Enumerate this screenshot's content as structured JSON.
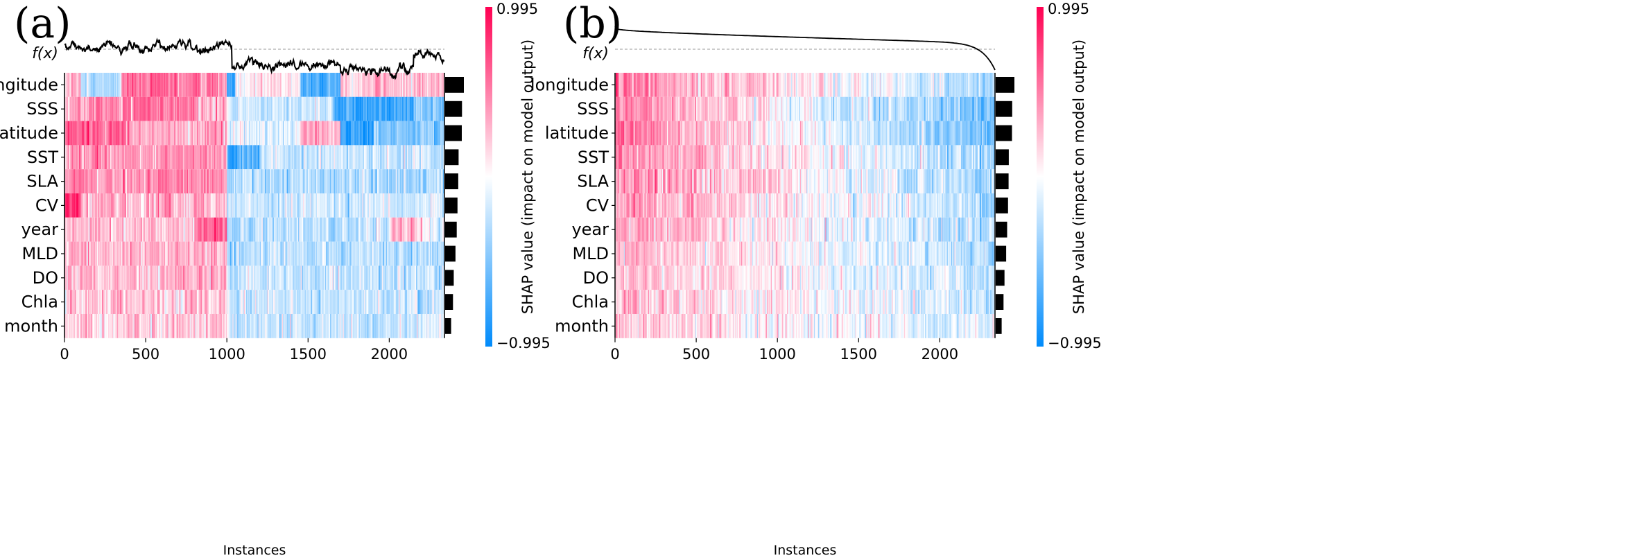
{
  "chart_data": [
    {
      "type": "heatmap",
      "panel_label": "(a)",
      "ordering": "original instance order",
      "fx_label": "f(x)",
      "xlabel": "Instances",
      "xticks": [
        0,
        500,
        1000,
        1500,
        2000
      ],
      "xtick_labels": [
        "0",
        "500",
        "1000",
        "1500",
        "2000"
      ],
      "n_instances": 2340,
      "features": [
        "longitude",
        "SSS",
        "latitude",
        "SST",
        "SLA",
        "CV",
        "year",
        "MLD",
        "DO",
        "Chla",
        "month"
      ],
      "mean_abs_shap_relative": [
        1.0,
        0.9,
        0.89,
        0.72,
        0.7,
        0.66,
        0.62,
        0.55,
        0.46,
        0.42,
        0.32
      ],
      "fx_segments": [
        [
          0,
          1030,
          0.75
        ],
        [
          1030,
          1700,
          0.15
        ],
        [
          1700,
          2150,
          0.0
        ],
        [
          2150,
          2340,
          0.45
        ]
      ],
      "shap_segments": [
        [
          [
            0,
            100,
            0.25
          ],
          [
            100,
            350,
            -0.3
          ],
          [
            350,
            1000,
            0.55
          ],
          [
            1000,
            1050,
            -0.7
          ],
          [
            1050,
            1450,
            0.1
          ],
          [
            1450,
            1700,
            -0.75
          ],
          [
            1700,
            2340,
            0.25
          ]
        ],
        [
          [
            0,
            150,
            0.35
          ],
          [
            150,
            800,
            0.55
          ],
          [
            800,
            1000,
            0.3
          ],
          [
            1000,
            1650,
            -0.2
          ],
          [
            1650,
            2150,
            -0.75
          ],
          [
            2150,
            2340,
            -0.5
          ]
        ],
        [
          [
            0,
            400,
            0.65
          ],
          [
            400,
            1000,
            0.3
          ],
          [
            1000,
            1450,
            -0.1
          ],
          [
            1450,
            1700,
            0.3
          ],
          [
            1700,
            1900,
            -0.85
          ],
          [
            1900,
            2340,
            -0.45
          ]
        ],
        [
          [
            0,
            1000,
            0.4
          ],
          [
            1000,
            1200,
            -0.75
          ],
          [
            1200,
            2340,
            -0.2
          ]
        ],
        [
          [
            0,
            1000,
            0.45
          ],
          [
            1000,
            2340,
            -0.3
          ]
        ],
        [
          [
            0,
            100,
            0.8
          ],
          [
            100,
            1000,
            0.3
          ],
          [
            1000,
            2340,
            -0.2
          ]
        ],
        [
          [
            0,
            800,
            0.25
          ],
          [
            800,
            1000,
            0.6
          ],
          [
            1000,
            2000,
            -0.25
          ],
          [
            2000,
            2200,
            0.3
          ],
          [
            2200,
            2340,
            -0.1
          ]
        ],
        [
          [
            0,
            1000,
            0.3
          ],
          [
            1000,
            2340,
            -0.25
          ]
        ],
        [
          [
            0,
            1000,
            0.25
          ],
          [
            1000,
            2340,
            -0.2
          ]
        ],
        [
          [
            0,
            1000,
            0.22
          ],
          [
            1000,
            2340,
            -0.22
          ]
        ],
        [
          [
            0,
            1000,
            0.2
          ],
          [
            1000,
            2340,
            -0.2
          ]
        ]
      ],
      "colorbar": {
        "max_label": "0.995",
        "min_label": "−0.995",
        "label": "SHAP value (impact on model output)",
        "vmin": -0.995,
        "vmax": 0.995,
        "high_color": "#ff0052",
        "mid_color": "#ffffff",
        "low_color": "#008bfb"
      }
    },
    {
      "type": "heatmap",
      "panel_label": "(b)",
      "ordering": "sorted by f(x) descending",
      "fx_label": "f(x)",
      "xlabel": "Instances",
      "xticks": [
        0,
        500,
        1000,
        1500,
        2000
      ],
      "xtick_labels": [
        "0",
        "500",
        "1000",
        "1500",
        "2000"
      ],
      "n_instances": 2340,
      "features": [
        "longitude",
        "SSS",
        "latitude",
        "SST",
        "SLA",
        "CV",
        "year",
        "MLD",
        "DO",
        "Chla",
        "month"
      ],
      "mean_abs_shap_relative": [
        1.0,
        0.88,
        0.87,
        0.7,
        0.69,
        0.66,
        0.61,
        0.56,
        0.47,
        0.42,
        0.32
      ],
      "shap_trend_start": [
        0.5,
        0.5,
        0.55,
        0.45,
        0.45,
        0.4,
        0.35,
        0.3,
        0.28,
        0.25,
        0.22
      ],
      "shap_trend_end": [
        -0.35,
        -0.6,
        -0.55,
        -0.35,
        -0.35,
        -0.3,
        -0.35,
        -0.3,
        -0.28,
        -0.22,
        -0.2
      ],
      "colorbar": {
        "max_label": "0.995",
        "min_label": "−0.995",
        "label": "SHAP value (impact on model output)",
        "vmin": -0.995,
        "vmax": 0.995,
        "high_color": "#ff0052",
        "mid_color": "#ffffff",
        "low_color": "#008bfb"
      }
    }
  ]
}
